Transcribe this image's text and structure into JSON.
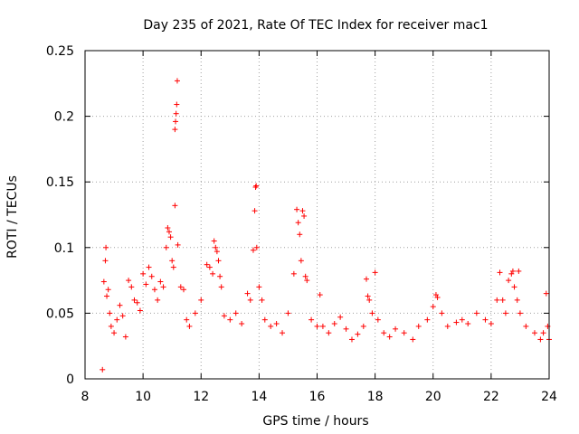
{
  "chart_data": {
    "type": "scatter",
    "title": "Day 235 of 2021, Rate Of TEC Index for receiver mac1",
    "xlabel": "GPS time / hours",
    "ylabel": "ROTI / TECUs",
    "xlim": [
      8,
      24
    ],
    "ylim": [
      0,
      0.25
    ],
    "x_ticks": [
      8,
      10,
      12,
      14,
      16,
      18,
      20,
      22,
      24
    ],
    "x_tick_labels": [
      "8",
      "10",
      "12",
      "14",
      "16",
      "18",
      "20",
      "22",
      "24"
    ],
    "y_ticks": [
      0,
      0.05,
      0.1,
      0.15,
      0.2,
      0.25
    ],
    "y_tick_labels": [
      "0",
      "0.05",
      "0.1",
      "0.15",
      "0.2",
      "0.25"
    ],
    "grid": true,
    "marker": "+",
    "series_color": "#ff0000",
    "series": [
      {
        "name": "ROTI",
        "points": [
          [
            8.6,
            0.007
          ],
          [
            8.65,
            0.074
          ],
          [
            8.7,
            0.09
          ],
          [
            8.72,
            0.1
          ],
          [
            8.75,
            0.063
          ],
          [
            8.8,
            0.068
          ],
          [
            8.85,
            0.05
          ],
          [
            8.9,
            0.04
          ],
          [
            9.0,
            0.035
          ],
          [
            9.1,
            0.045
          ],
          [
            9.2,
            0.056
          ],
          [
            9.3,
            0.048
          ],
          [
            9.4,
            0.032
          ],
          [
            9.5,
            0.075
          ],
          [
            9.6,
            0.07
          ],
          [
            9.7,
            0.06
          ],
          [
            9.8,
            0.058
          ],
          [
            9.9,
            0.052
          ],
          [
            10.0,
            0.08
          ],
          [
            10.1,
            0.072
          ],
          [
            10.2,
            0.085
          ],
          [
            10.3,
            0.078
          ],
          [
            10.4,
            0.068
          ],
          [
            10.5,
            0.06
          ],
          [
            10.6,
            0.074
          ],
          [
            10.7,
            0.07
          ],
          [
            10.8,
            0.1
          ],
          [
            10.85,
            0.115
          ],
          [
            10.9,
            0.112
          ],
          [
            10.95,
            0.108
          ],
          [
            11.0,
            0.09
          ],
          [
            11.05,
            0.085
          ],
          [
            11.1,
            0.19
          ],
          [
            11.12,
            0.196
          ],
          [
            11.14,
            0.202
          ],
          [
            11.16,
            0.209
          ],
          [
            11.18,
            0.227
          ],
          [
            11.1,
            0.132
          ],
          [
            11.2,
            0.102
          ],
          [
            11.3,
            0.07
          ],
          [
            11.4,
            0.068
          ],
          [
            11.5,
            0.045
          ],
          [
            11.6,
            0.04
          ],
          [
            11.8,
            0.05
          ],
          [
            12.0,
            0.06
          ],
          [
            12.2,
            0.087
          ],
          [
            12.3,
            0.085
          ],
          [
            12.4,
            0.08
          ],
          [
            12.45,
            0.105
          ],
          [
            12.5,
            0.1
          ],
          [
            12.55,
            0.097
          ],
          [
            12.6,
            0.09
          ],
          [
            12.65,
            0.078
          ],
          [
            12.7,
            0.07
          ],
          [
            12.8,
            0.048
          ],
          [
            13.0,
            0.045
          ],
          [
            13.2,
            0.05
          ],
          [
            13.4,
            0.042
          ],
          [
            13.6,
            0.065
          ],
          [
            13.7,
            0.06
          ],
          [
            13.8,
            0.098
          ],
          [
            13.85,
            0.128
          ],
          [
            13.88,
            0.146
          ],
          [
            13.9,
            0.147
          ],
          [
            13.92,
            0.1
          ],
          [
            14.0,
            0.07
          ],
          [
            14.1,
            0.06
          ],
          [
            14.2,
            0.045
          ],
          [
            14.4,
            0.04
          ],
          [
            14.6,
            0.042
          ],
          [
            14.8,
            0.035
          ],
          [
            15.0,
            0.05
          ],
          [
            15.2,
            0.08
          ],
          [
            15.3,
            0.129
          ],
          [
            15.35,
            0.119
          ],
          [
            15.4,
            0.11
          ],
          [
            15.45,
            0.09
          ],
          [
            15.5,
            0.128
          ],
          [
            15.55,
            0.124
          ],
          [
            15.6,
            0.078
          ],
          [
            15.65,
            0.075
          ],
          [
            15.8,
            0.045
          ],
          [
            16.0,
            0.04
          ],
          [
            16.1,
            0.064
          ],
          [
            16.2,
            0.04
          ],
          [
            16.4,
            0.035
          ],
          [
            16.6,
            0.042
          ],
          [
            16.8,
            0.047
          ],
          [
            17.0,
            0.038
          ],
          [
            17.2,
            0.03
          ],
          [
            17.4,
            0.034
          ],
          [
            17.6,
            0.04
          ],
          [
            17.7,
            0.076
          ],
          [
            17.75,
            0.063
          ],
          [
            17.8,
            0.06
          ],
          [
            17.9,
            0.05
          ],
          [
            18.0,
            0.081
          ],
          [
            18.1,
            0.045
          ],
          [
            18.3,
            0.035
          ],
          [
            18.5,
            0.032
          ],
          [
            18.7,
            0.038
          ],
          [
            19.0,
            0.035
          ],
          [
            19.3,
            0.03
          ],
          [
            19.5,
            0.04
          ],
          [
            19.8,
            0.045
          ],
          [
            20.0,
            0.055
          ],
          [
            20.1,
            0.064
          ],
          [
            20.15,
            0.062
          ],
          [
            20.3,
            0.05
          ],
          [
            20.5,
            0.04
          ],
          [
            20.8,
            0.043
          ],
          [
            21.0,
            0.045
          ],
          [
            21.2,
            0.042
          ],
          [
            21.5,
            0.05
          ],
          [
            21.8,
            0.045
          ],
          [
            22.0,
            0.042
          ],
          [
            22.2,
            0.06
          ],
          [
            22.3,
            0.081
          ],
          [
            22.4,
            0.06
          ],
          [
            22.5,
            0.05
          ],
          [
            22.6,
            0.075
          ],
          [
            22.7,
            0.08
          ],
          [
            22.75,
            0.082
          ],
          [
            22.8,
            0.07
          ],
          [
            22.9,
            0.06
          ],
          [
            22.95,
            0.082
          ],
          [
            23.0,
            0.05
          ],
          [
            23.2,
            0.04
          ],
          [
            23.5,
            0.035
          ],
          [
            23.7,
            0.03
          ],
          [
            23.8,
            0.035
          ],
          [
            23.9,
            0.065
          ],
          [
            23.95,
            0.04
          ],
          [
            24.0,
            0.03
          ]
        ]
      }
    ]
  }
}
